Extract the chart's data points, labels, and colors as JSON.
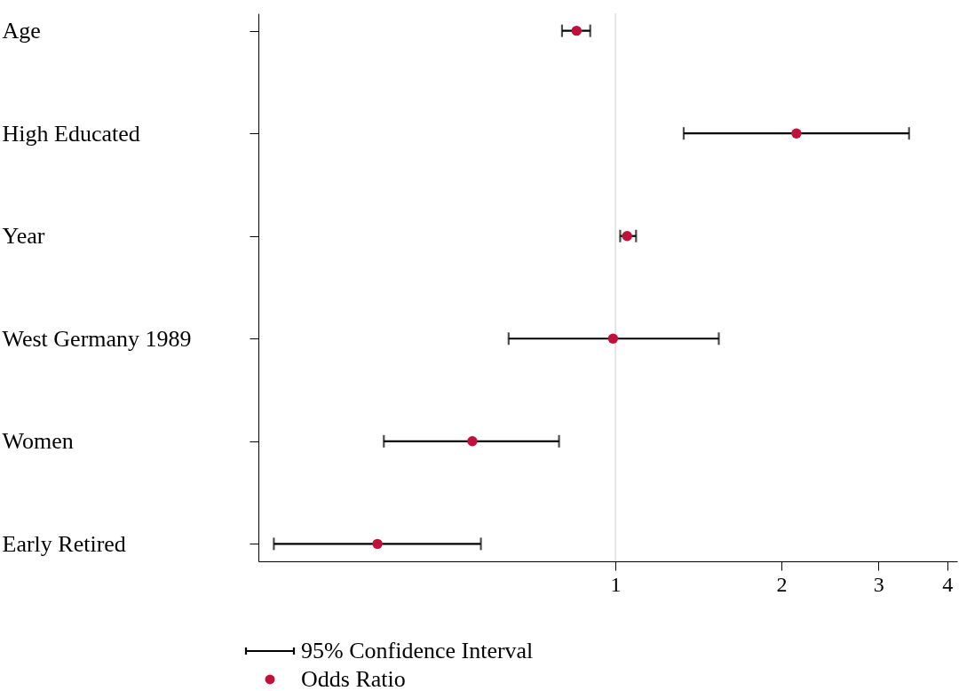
{
  "chart_data": {
    "type": "scatter",
    "orientation": "horizontal",
    "categories": [
      "Age",
      "High Educated",
      "Year",
      "West Germany 1989",
      "Women",
      "Early Retired"
    ],
    "series": [
      {
        "name": "Odds Ratio",
        "color": "#c1113a",
        "values": [
          0.85,
          2.13,
          1.05,
          0.99,
          0.55,
          0.37
        ],
        "errors": [
          [
            0.8,
            0.9
          ],
          [
            1.33,
            3.41
          ],
          [
            1.02,
            1.09
          ],
          [
            0.64,
            1.54
          ],
          [
            0.38,
            0.79
          ],
          [
            0.24,
            0.57
          ]
        ]
      }
    ],
    "log": "x",
    "xlim": [
      0.225,
      4.17
    ],
    "xticks": [
      1,
      2,
      3,
      4
    ],
    "grid": false,
    "legend": "bottom",
    "marker": "circle",
    "ref_lines": [
      {
        "axis": "x",
        "value": 1,
        "color": "#dddddd"
      }
    ],
    "annotations": [
      "95% Confidence Interval"
    ]
  }
}
